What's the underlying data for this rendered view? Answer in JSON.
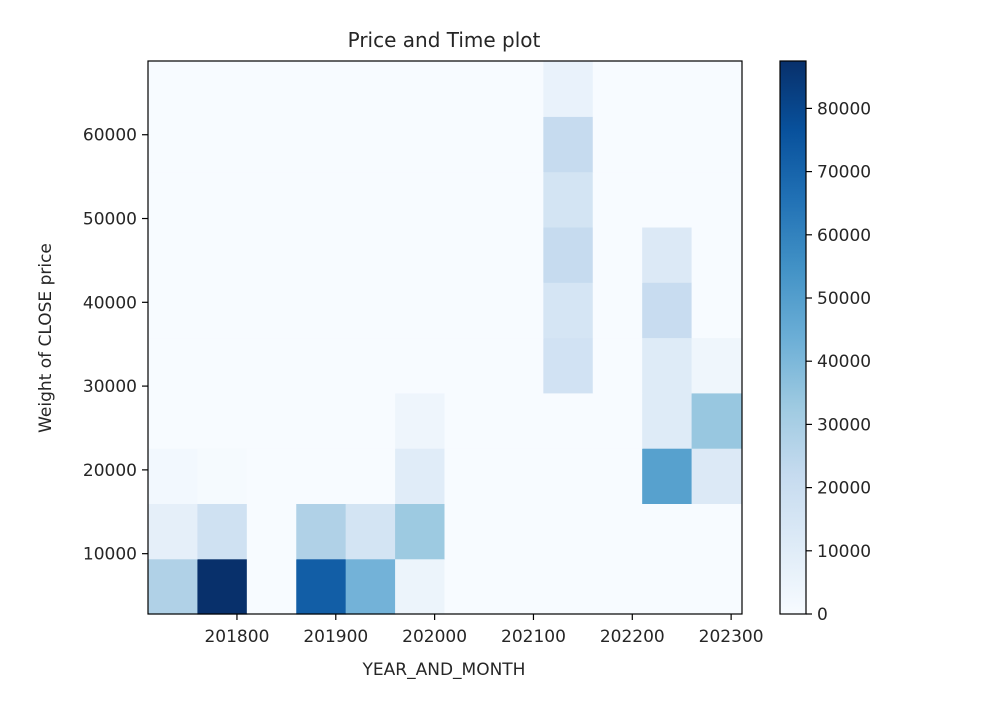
{
  "chart_data": {
    "type": "heatmap",
    "title": "Price and Time plot",
    "xlabel": "YEAR_AND_MONTH",
    "ylabel": "Weight of CLOSE price",
    "xlim": [
      201710,
      202311
    ],
    "ylim": [
      2800,
      68800
    ],
    "x_edges": [
      201710,
      201760,
      201810,
      201860,
      201910,
      201960,
      202010,
      202060,
      202110,
      202160,
      202210,
      202260,
      202310
    ],
    "y_edges": [
      2800,
      9400,
      16000,
      22600,
      29200,
      35800,
      42400,
      49000,
      55600,
      62200,
      68800
    ],
    "x_ticks": [
      201800,
      201900,
      202000,
      202100,
      202200,
      202300
    ],
    "x_tick_labels": [
      "201800",
      "201900",
      "202000",
      "202100",
      "202200",
      "202300"
    ],
    "y_ticks": [
      10000,
      20000,
      30000,
      40000,
      50000,
      60000
    ],
    "y_tick_labels": [
      "10000",
      "20000",
      "30000",
      "40000",
      "50000",
      "60000"
    ],
    "colorbar": {
      "colormap": "Blues",
      "min": 0,
      "max": 87500,
      "ticks": [
        0,
        10000,
        20000,
        30000,
        40000,
        50000,
        60000,
        70000,
        80000
      ],
      "tick_labels": [
        "0",
        "10000",
        "20000",
        "30000",
        "40000",
        "50000",
        "60000",
        "70000",
        "80000"
      ]
    },
    "values": [
      [
        28000,
        87500,
        0,
        72000,
        42000,
        5000,
        0,
        0,
        0,
        0,
        0,
        0
      ],
      [
        8000,
        18000,
        0,
        28000,
        16000,
        33000,
        0,
        0,
        0,
        0,
        0,
        0
      ],
      [
        2000,
        1000,
        0,
        0,
        0,
        10000,
        0,
        0,
        0,
        0,
        49000,
        12000
      ],
      [
        0,
        0,
        0,
        0,
        0,
        4000,
        0,
        0,
        0,
        0,
        11000,
        34000
      ],
      [
        0,
        0,
        0,
        0,
        0,
        0,
        0,
        0,
        17000,
        0,
        11000,
        3500
      ],
      [
        0,
        0,
        0,
        0,
        0,
        0,
        0,
        0,
        15000,
        0,
        21000,
        0
      ],
      [
        0,
        0,
        0,
        0,
        0,
        0,
        0,
        0,
        22000,
        0,
        12000,
        0
      ],
      [
        0,
        0,
        0,
        0,
        0,
        0,
        0,
        0,
        16000,
        0,
        0,
        0
      ],
      [
        0,
        0,
        0,
        0,
        0,
        0,
        0,
        0,
        22000,
        0,
        0,
        0
      ],
      [
        0,
        0,
        0,
        0,
        0,
        0,
        0,
        0,
        6000,
        0,
        0,
        0
      ]
    ]
  }
}
